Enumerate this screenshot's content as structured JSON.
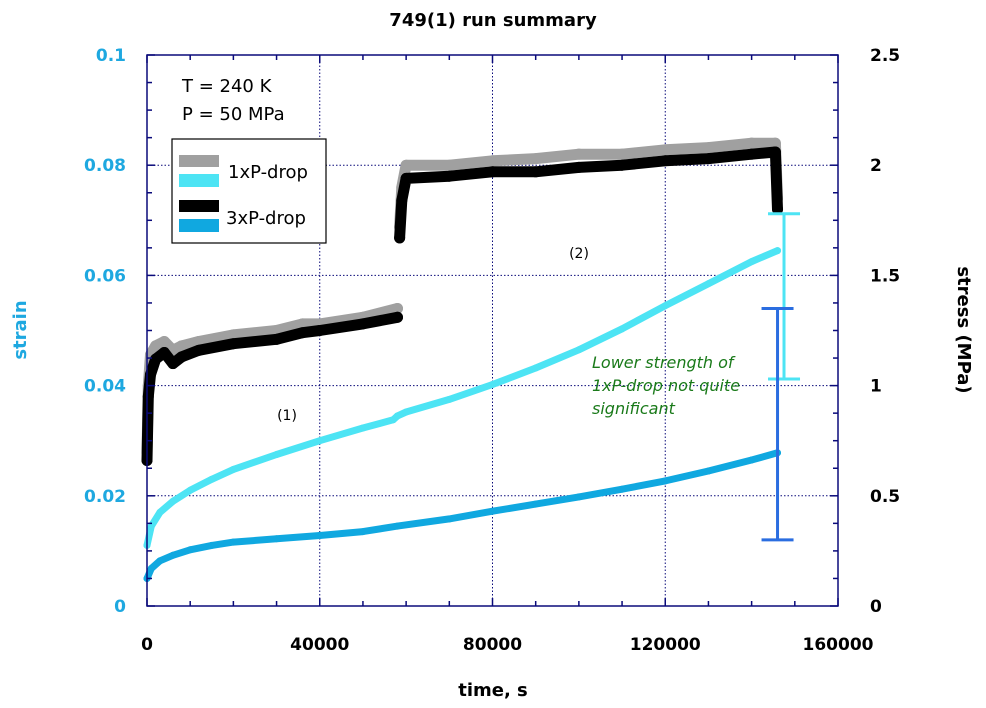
{
  "chart_data": {
    "type": "line",
    "title": "749(1) run summary",
    "xlabel": "time, s",
    "ylabel_left": "strain",
    "ylabel_right": "stress (MPa)",
    "xlim": [
      0,
      160000
    ],
    "ylim_left": [
      0,
      0.1
    ],
    "ylim_right": [
      0,
      2.5
    ],
    "x_ticks": [
      "0",
      "40000",
      "80000",
      "120000",
      "160000"
    ],
    "x_tick_values": [
      0,
      40000,
      80000,
      120000,
      160000
    ],
    "y_left_ticks": [
      "0",
      "0.02",
      "0.04",
      "0.06",
      "0.08",
      "0.1"
    ],
    "y_left_tick_values": [
      0,
      0.02,
      0.04,
      0.06,
      0.08,
      0.1
    ],
    "y_right_ticks": [
      "0",
      "0.5",
      "1",
      "1.5",
      "2",
      "2.5"
    ],
    "y_right_tick_values": [
      0,
      0.5,
      1,
      1.5,
      2,
      2.5
    ],
    "grid": true,
    "legend": {
      "placement": "top-left",
      "entries": [
        {
          "label": "1xP-drop",
          "colors": [
            "#a0a0a0",
            "#4de4f4"
          ]
        },
        {
          "label": "3xP-drop",
          "colors": [
            "#000000",
            "#10a8e0"
          ]
        }
      ]
    },
    "annotations": {
      "conditions": [
        "T = 240 K",
        "P = 50 MPa"
      ],
      "segment_1": "(1)",
      "segment_2": "(2)",
      "note": [
        "Lower strength of",
        "1xP-drop not quite",
        "significant"
      ]
    },
    "series": [
      {
        "name": "1xP-drop strain",
        "axis": "left",
        "color": "#4de4f4",
        "x": [
          0,
          1000,
          3000,
          6000,
          10000,
          15000,
          20000,
          30000,
          40000,
          50000,
          57000,
          58000,
          60000,
          70000,
          80000,
          90000,
          100000,
          110000,
          120000,
          130000,
          140000,
          146000
        ],
        "y": [
          0.011,
          0.0145,
          0.017,
          0.019,
          0.021,
          0.023,
          0.0248,
          0.0275,
          0.03,
          0.0323,
          0.0338,
          0.0345,
          0.0352,
          0.0375,
          0.0402,
          0.0432,
          0.0465,
          0.0503,
          0.0545,
          0.0585,
          0.0625,
          0.0645
        ]
      },
      {
        "name": "3xP-drop strain",
        "axis": "left",
        "color": "#10a8e0",
        "x": [
          0,
          1000,
          3000,
          6000,
          10000,
          15000,
          20000,
          30000,
          40000,
          50000,
          58000,
          70000,
          80000,
          90000,
          100000,
          110000,
          120000,
          130000,
          140000,
          146000
        ],
        "y": [
          0.005,
          0.0068,
          0.0082,
          0.0092,
          0.0102,
          0.011,
          0.0116,
          0.0122,
          0.0128,
          0.0135,
          0.0145,
          0.0158,
          0.0172,
          0.0185,
          0.0198,
          0.0212,
          0.0227,
          0.0245,
          0.0265,
          0.0278
        ]
      },
      {
        "name": "1xP-drop stress",
        "axis": "right",
        "color": "#a0a0a0",
        "segments": [
          {
            "x": [
              0,
              300,
              800,
              2000,
              4000,
              6000,
              8000,
              12000,
              20000,
              30000,
              36000,
              40000,
              50000,
              58000
            ],
            "y": [
              0.7,
              1.0,
              1.14,
              1.18,
              1.2,
              1.16,
              1.18,
              1.2,
              1.23,
              1.25,
              1.28,
              1.28,
              1.31,
              1.35
            ]
          },
          {
            "x": [
              58500,
              59000,
              60000,
              70000,
              80000,
              90000,
              100000,
              110000,
              120000,
              130000,
              140000,
              145500,
              146000
            ],
            "y": [
              1.72,
              1.9,
              2.0,
              2.0,
              2.02,
              2.03,
              2.05,
              2.05,
              2.07,
              2.08,
              2.1,
              2.1,
              1.85
            ]
          }
        ]
      },
      {
        "name": "3xP-drop stress",
        "axis": "right",
        "color": "#000000",
        "segments": [
          {
            "x": [
              0,
              300,
              800,
              2000,
              4000,
              6000,
              8000,
              12000,
              20000,
              30000,
              36000,
              40000,
              50000,
              58000
            ],
            "y": [
              0.66,
              0.95,
              1.05,
              1.12,
              1.15,
              1.1,
              1.13,
              1.16,
              1.19,
              1.21,
              1.24,
              1.25,
              1.28,
              1.31
            ]
          },
          {
            "x": [
              58500,
              59000,
              60000,
              70000,
              80000,
              90000,
              100000,
              110000,
              120000,
              130000,
              140000,
              145500,
              146000
            ],
            "y": [
              1.67,
              1.84,
              1.94,
              1.95,
              1.97,
              1.97,
              1.99,
              2.0,
              2.02,
              2.03,
              2.05,
              2.06,
              1.8
            ]
          }
        ]
      }
    ],
    "error_bars": [
      {
        "name": "1xP-drop stress range",
        "axis": "right",
        "color": "#4de4f4",
        "x": 147500,
        "low": 1.03,
        "high": 1.78
      },
      {
        "name": "3xP-drop stress range",
        "axis": "right",
        "color": "#2a6de0",
        "x": 146000,
        "low": 0.3,
        "high": 1.35
      }
    ]
  }
}
